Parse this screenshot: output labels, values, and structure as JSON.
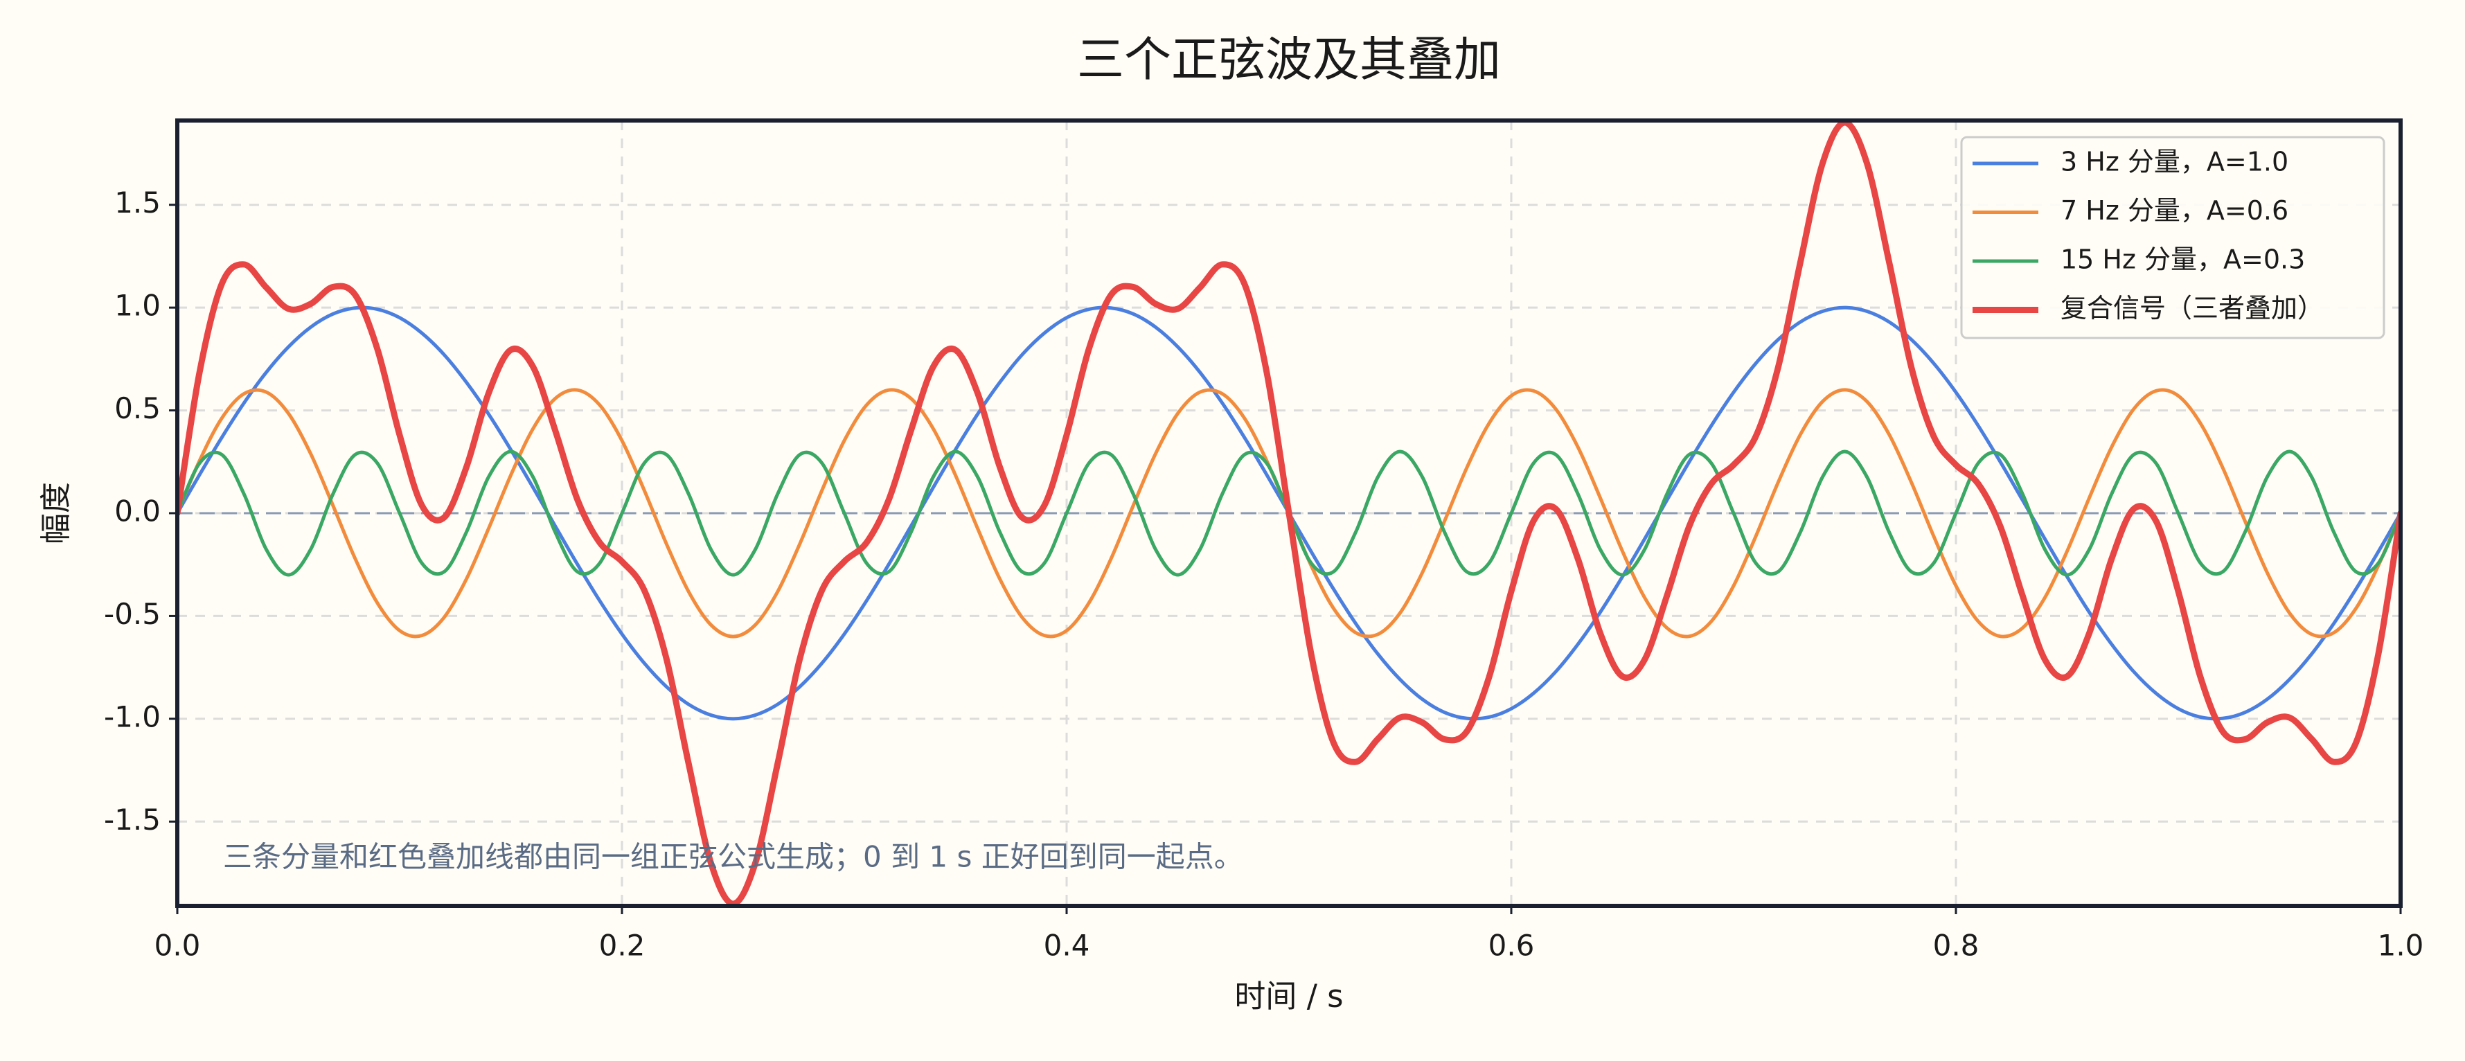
{
  "chart_data": {
    "type": "line",
    "title": "三个正弦波及其叠加",
    "xlabel": "时间 / s",
    "ylabel": "幅度",
    "annotation": "三条分量和红色叠加线都由同一组正弦公式生成；0 到 1 s 正好回到同一起点。",
    "legend": "upper right",
    "grid": true,
    "zero_line": true,
    "xlim": [
      0,
      1
    ],
    "ylim": [
      -1.91,
      1.91
    ],
    "xticks": [
      {
        "value": 0,
        "label": "0.0"
      },
      0.2,
      0.4,
      0.6,
      0.8,
      {
        "value": 1,
        "label": "1.0"
      }
    ],
    "yticks": [
      -1.5,
      {
        "value": -1,
        "label": "-1.0"
      },
      -0.5,
      {
        "value": 0,
        "label": "0.0"
      },
      0.5,
      {
        "value": 1,
        "label": "1.0"
      },
      1.5
    ],
    "x": [
      0,
      0.01,
      0.02,
      0.03,
      0.04,
      0.05,
      0.06,
      0.07,
      0.08,
      0.09,
      0.1,
      0.11,
      0.12,
      0.13,
      0.14,
      0.15,
      0.16,
      0.17,
      0.18,
      0.19,
      0.2,
      0.21,
      0.22,
      0.23,
      0.24,
      0.25,
      0.26,
      0.27,
      0.28,
      0.29,
      0.3,
      0.31,
      0.32,
      0.33,
      0.34,
      0.35,
      0.36,
      0.37,
      0.38,
      0.39,
      0.4,
      0.41,
      0.42,
      0.43,
      0.44,
      0.45,
      0.46,
      0.47,
      0.48,
      0.49,
      0.5,
      0.51,
      0.52,
      0.53,
      0.54,
      0.55,
      0.56,
      0.57,
      0.58,
      0.59,
      0.6,
      0.61,
      0.62,
      0.63,
      0.64,
      0.65,
      0.66,
      0.67,
      0.68,
      0.69,
      0.7,
      0.71,
      0.72,
      0.73,
      0.74,
      0.75,
      0.76,
      0.77,
      0.78,
      0.79,
      0.8,
      0.81,
      0.82,
      0.83,
      0.84,
      0.85,
      0.86,
      0.87,
      0.88,
      0.89,
      0.9,
      0.91,
      0.92,
      0.93,
      0.94,
      0.95,
      0.96,
      0.97,
      0.98,
      0.99,
      1
    ],
    "series": [
      {
        "name": "3 Hz 分量，A=1.0",
        "color": "#4a7fe0",
        "width": 5,
        "values": [
          0,
          0.187,
          0.368,
          0.536,
          0.685,
          0.809,
          0.905,
          0.969,
          0.998,
          0.992,
          0.951,
          0.876,
          0.771,
          0.637,
          0.482,
          0.309,
          0.125,
          -0.063,
          -0.249,
          -0.426,
          -0.588,
          -0.729,
          -0.844,
          -0.93,
          -0.982,
          -1,
          -0.982,
          -0.93,
          -0.844,
          -0.729,
          -0.588,
          -0.426,
          -0.249,
          -0.063,
          0.125,
          0.309,
          0.482,
          0.637,
          0.771,
          0.876,
          0.951,
          0.992,
          0.998,
          0.969,
          0.905,
          0.809,
          0.685,
          0.536,
          0.368,
          0.187,
          0,
          -0.187,
          -0.368,
          -0.536,
          -0.685,
          -0.809,
          -0.905,
          -0.969,
          -0.998,
          -0.992,
          -0.951,
          -0.876,
          -0.771,
          -0.637,
          -0.482,
          -0.309,
          -0.125,
          0.063,
          0.249,
          0.426,
          0.588,
          0.729,
          0.844,
          0.93,
          0.982,
          1,
          0.982,
          0.93,
          0.844,
          0.729,
          0.588,
          0.426,
          0.249,
          0.063,
          -0.125,
          -0.309,
          -0.482,
          -0.637,
          -0.771,
          -0.876,
          -0.951,
          -0.992,
          -0.998,
          -0.969,
          -0.905,
          -0.809,
          -0.685,
          -0.536,
          -0.368,
          -0.187,
          0
        ]
      },
      {
        "name": "7 Hz 分量，A=0.6",
        "color": "#f28c3c",
        "width": 5,
        "values": [
          0,
          0.255,
          0.462,
          0.581,
          0.589,
          0.485,
          0.289,
          0.038,
          -0.221,
          -0.437,
          -0.571,
          -0.595,
          -0.507,
          -0.321,
          -0.075,
          0.185,
          0.411,
          0.558,
          0.599,
          0.526,
          0.353,
          0.112,
          -0.149,
          -0.382,
          -0.543,
          -0.6,
          -0.543,
          -0.382,
          -0.149,
          0.112,
          0.353,
          0.526,
          0.599,
          0.558,
          0.411,
          0.185,
          -0.075,
          -0.321,
          -0.507,
          -0.595,
          -0.571,
          -0.437,
          -0.221,
          0.038,
          0.289,
          0.485,
          0.589,
          0.581,
          0.462,
          0.255,
          0,
          -0.255,
          -0.462,
          -0.581,
          -0.589,
          -0.485,
          -0.289,
          -0.038,
          0.221,
          0.437,
          0.571,
          0.595,
          0.507,
          0.321,
          0.075,
          -0.185,
          -0.411,
          -0.558,
          -0.599,
          -0.526,
          -0.353,
          -0.112,
          0.149,
          0.382,
          0.543,
          0.6,
          0.543,
          0.382,
          0.149,
          -0.112,
          -0.353,
          -0.526,
          -0.599,
          -0.558,
          -0.411,
          -0.185,
          0.075,
          0.321,
          0.507,
          0.595,
          0.571,
          0.437,
          0.221,
          -0.038,
          -0.289,
          -0.485,
          -0.589,
          -0.581,
          -0.462,
          -0.255,
          0
        ]
      },
      {
        "name": "15 Hz 分量，A=0.3",
        "color": "#3aa864",
        "width": 5,
        "values": [
          0,
          0.243,
          0.285,
          0.093,
          -0.176,
          -0.3,
          -0.176,
          0.093,
          0.285,
          0.243,
          0,
          -0.243,
          -0.285,
          -0.093,
          0.176,
          0.3,
          0.176,
          -0.093,
          -0.285,
          -0.243,
          0,
          0.243,
          0.285,
          0.093,
          -0.176,
          -0.3,
          -0.176,
          0.093,
          0.285,
          0.243,
          0,
          -0.243,
          -0.285,
          -0.093,
          0.176,
          0.3,
          0.176,
          -0.093,
          -0.285,
          -0.243,
          0,
          0.243,
          0.285,
          0.093,
          -0.176,
          -0.3,
          -0.176,
          0.093,
          0.285,
          0.243,
          0,
          -0.243,
          -0.285,
          -0.093,
          0.176,
          0.3,
          0.176,
          -0.093,
          -0.285,
          -0.243,
          0,
          0.243,
          0.285,
          0.093,
          -0.176,
          -0.3,
          -0.176,
          0.093,
          0.285,
          0.243,
          0,
          -0.243,
          -0.285,
          -0.093,
          0.176,
          0.3,
          0.176,
          -0.093,
          -0.285,
          -0.243,
          0,
          0.243,
          0.285,
          0.093,
          -0.176,
          -0.3,
          -0.176,
          0.093,
          0.285,
          0.243,
          0,
          -0.243,
          -0.285,
          -0.093,
          0.176,
          0.3,
          0.176,
          -0.093,
          -0.285,
          -0.243,
          0
        ]
      },
      {
        "name": "复合信号（三者叠加）",
        "color": "#e84545",
        "width": 9,
        "values": [
          0,
          0.685,
          1.115,
          1.21,
          1.098,
          0.994,
          1.018,
          1.1,
          1.062,
          0.798,
          0.38,
          0.038,
          -0.021,
          0.223,
          0.583,
          0.794,
          0.712,
          0.402,
          0.065,
          -0.143,
          -0.235,
          -0.374,
          -0.708,
          -1.219,
          -1.701,
          -1.9,
          -1.701,
          -1.219,
          -0.708,
          -0.374,
          -0.235,
          -0.143,
          0.065,
          0.402,
          0.712,
          0.794,
          0.583,
          0.223,
          -0.021,
          0.038,
          0.38,
          0.798,
          1.062,
          1.1,
          1.018,
          0.994,
          1.098,
          1.21,
          1.115,
          0.685,
          0,
          -0.685,
          -1.115,
          -1.21,
          -1.098,
          -0.994,
          -1.018,
          -1.1,
          -1.062,
          -0.798,
          -0.38,
          -0.038,
          0.021,
          -0.223,
          -0.583,
          -0.794,
          -0.712,
          -0.402,
          -0.065,
          0.143,
          0.235,
          0.374,
          0.708,
          1.219,
          1.701,
          1.9,
          1.701,
          1.219,
          0.708,
          0.374,
          0.235,
          0.143,
          -0.065,
          -0.402,
          -0.712,
          -0.794,
          -0.583,
          -0.223,
          0.021,
          -0.038,
          -0.38,
          -0.798,
          -1.062,
          -1.1,
          -1.018,
          -0.994,
          -1.098,
          -1.21,
          -1.115,
          -0.685,
          0
        ]
      }
    ]
  }
}
